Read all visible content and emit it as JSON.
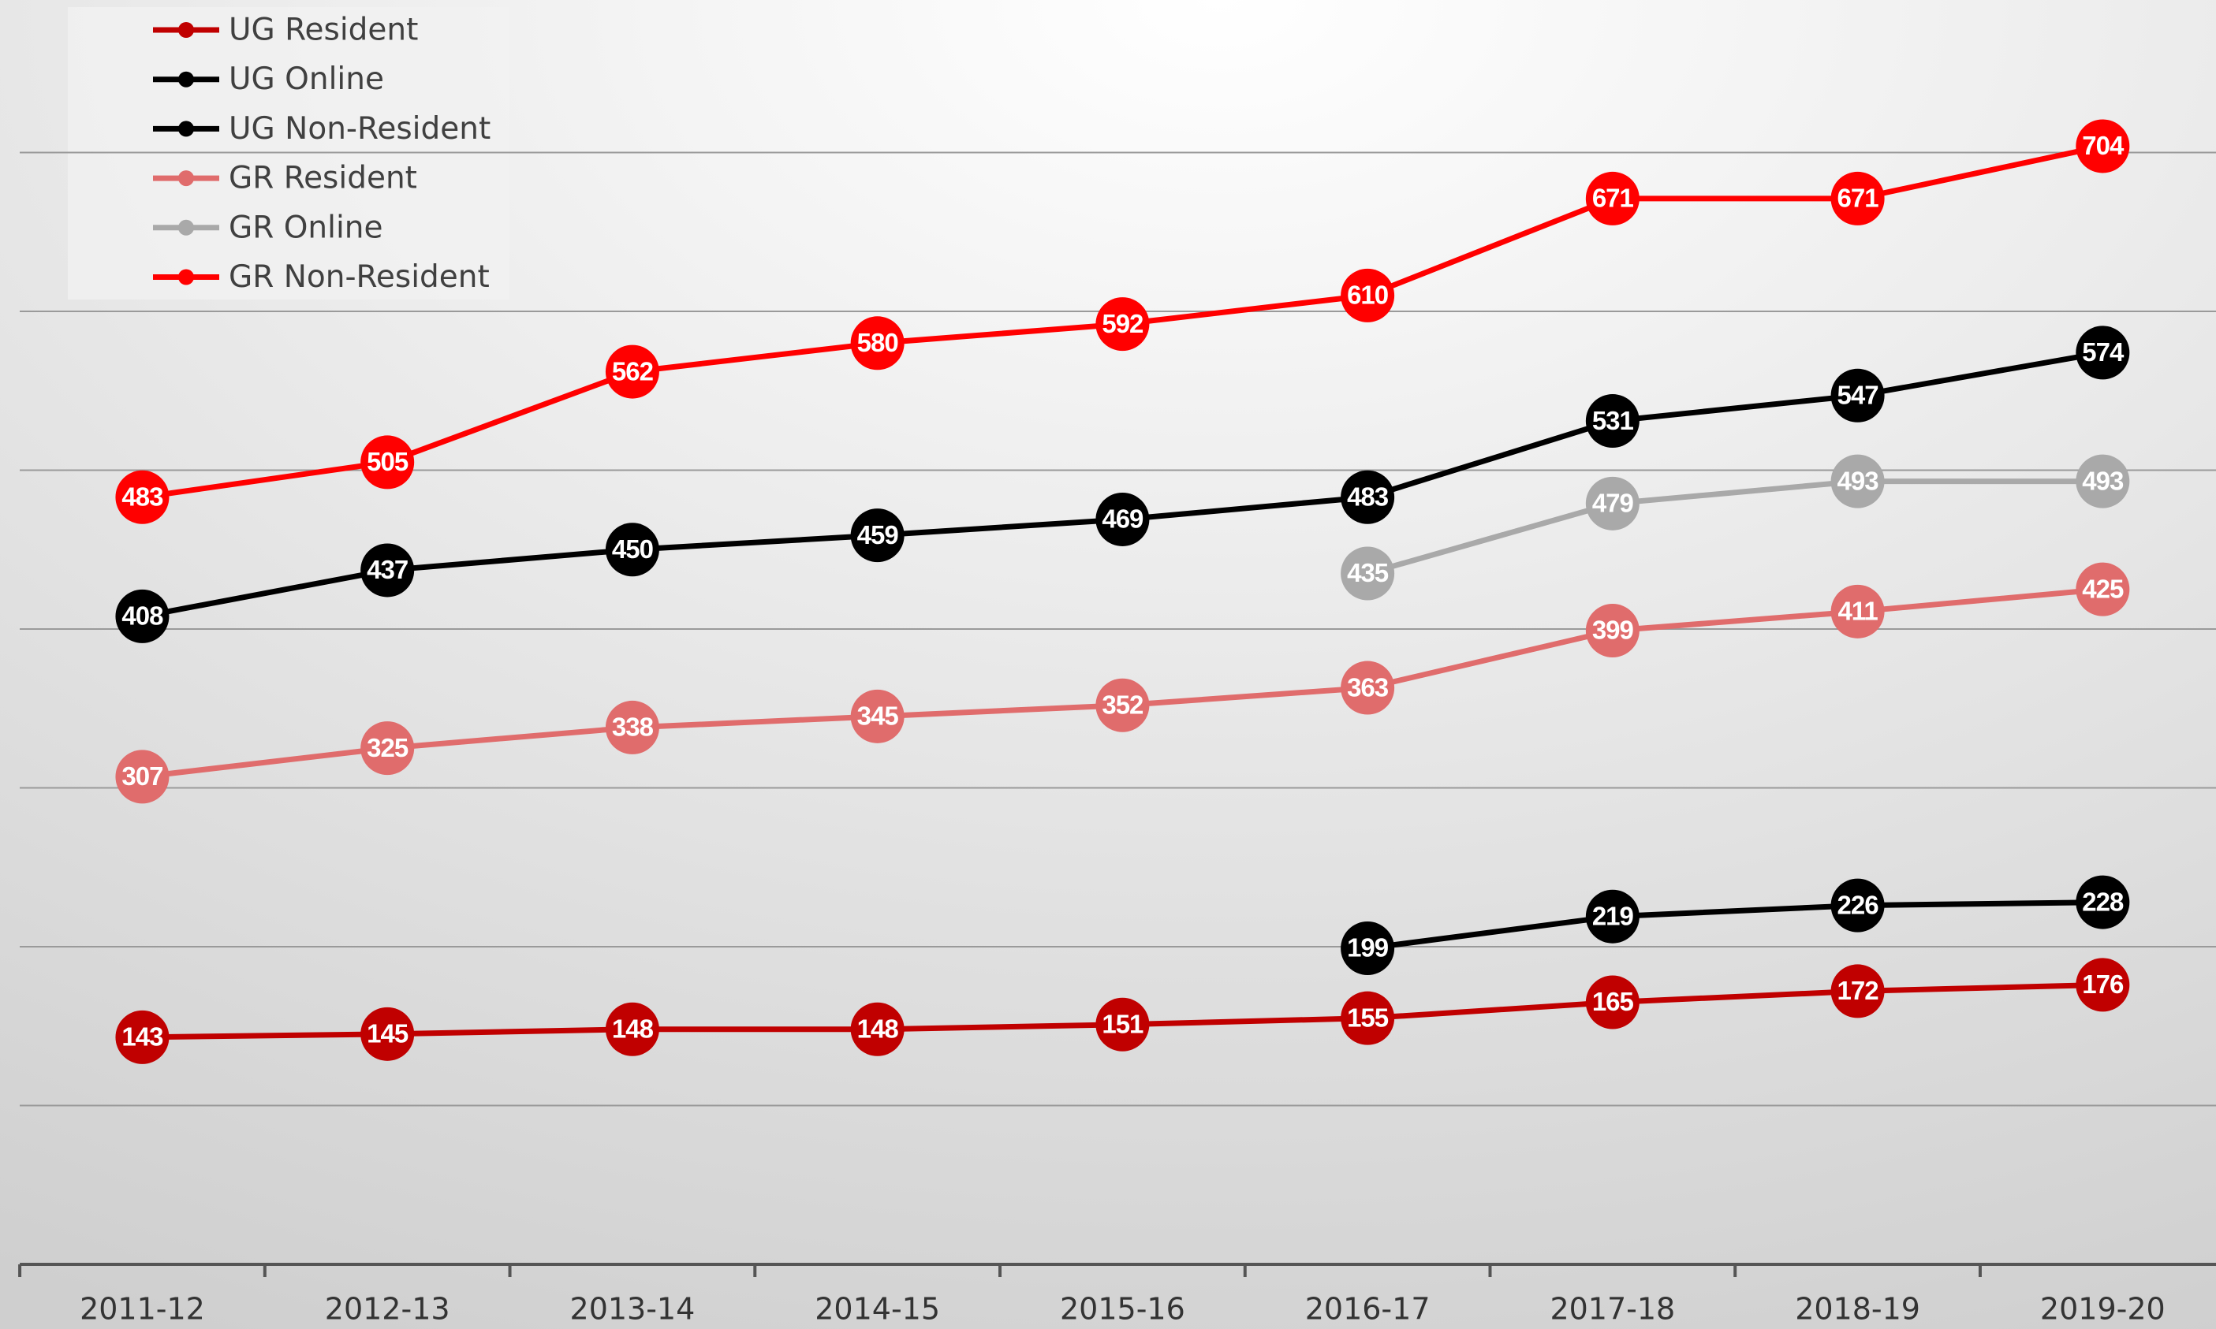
{
  "chart_data": {
    "type": "line",
    "categories": [
      "2011-12",
      "2012-13",
      "2013-14",
      "2014-15",
      "2015-16",
      "2016-17",
      "2017-18",
      "2018-19",
      "2019-20"
    ],
    "series": [
      {
        "name": "UG Resident",
        "color": "#c00000",
        "values": [
          143,
          145,
          148,
          148,
          151,
          155,
          165,
          172,
          176
        ]
      },
      {
        "name": "UG Online",
        "color": "#000000",
        "values": [
          null,
          null,
          null,
          null,
          null,
          199,
          219,
          226,
          228
        ]
      },
      {
        "name": "UG Non-Resident",
        "color": "#000000",
        "values": [
          408,
          437,
          450,
          459,
          469,
          483,
          531,
          547,
          574
        ]
      },
      {
        "name": "GR Resident",
        "color": "#e06c6c",
        "values": [
          307,
          325,
          338,
          345,
          352,
          363,
          399,
          411,
          425
        ]
      },
      {
        "name": "GR Online",
        "color": "#a9a9a9",
        "values": [
          null,
          null,
          null,
          null,
          null,
          435,
          479,
          493,
          493
        ]
      },
      {
        "name": "GR Non-Resident",
        "color": "#ff0000",
        "values": [
          483,
          505,
          562,
          580,
          592,
          610,
          671,
          671,
          704
        ]
      }
    ],
    "ylim": [
      0,
      800
    ],
    "yticks": [
      100,
      200,
      300,
      400,
      500,
      600,
      700
    ],
    "grid": true,
    "legend": "top-left"
  }
}
